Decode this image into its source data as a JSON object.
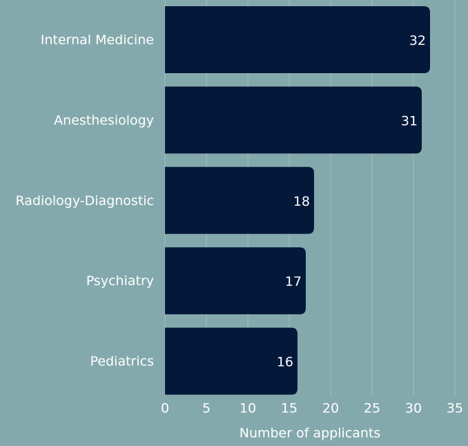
{
  "chart_data": {
    "type": "bar",
    "orientation": "horizontal",
    "categories": [
      "Internal Medicine",
      "Anesthesiology",
      "Radiology-Diagnostic",
      "Psychiatry",
      "Pediatrics"
    ],
    "values": [
      32,
      31,
      18,
      17,
      16
    ],
    "color": "#04183a",
    "xlabel": "Number of applicants",
    "xlim": [
      0,
      35
    ],
    "xticks": [
      0,
      5,
      10,
      15,
      20,
      25,
      30,
      35
    ],
    "grid": true
  }
}
